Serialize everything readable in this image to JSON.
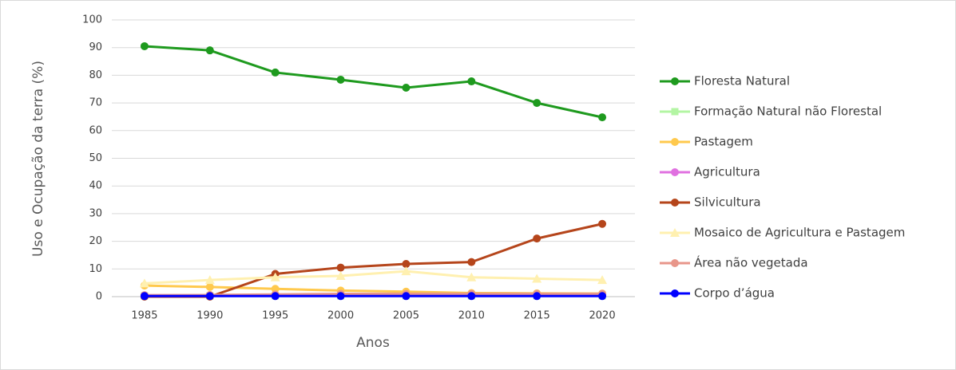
{
  "chart_data": {
    "type": "line",
    "y_label": "Uso e Ocupação da terra (%)",
    "x_label": "Anos",
    "categories": [
      "1985",
      "1990",
      "1995",
      "2000",
      "2005",
      "2010",
      "2015",
      "2020"
    ],
    "ylim": [
      0,
      100
    ],
    "yticks": [
      0,
      10,
      20,
      30,
      40,
      50,
      60,
      70,
      80,
      90,
      100
    ],
    "grid": true,
    "legend": "right",
    "series": [
      {
        "name": "Floresta Natural",
        "color": "#1e9a1e",
        "marker": "circle",
        "values": [
          90.5,
          89,
          81,
          78.4,
          75.5,
          77.8,
          70,
          64.8
        ]
      },
      {
        "name": "Formação Natural não Florestal",
        "color": "#b3f5a3",
        "marker": "square",
        "values": [
          0.3,
          0.3,
          0.3,
          0.3,
          0.3,
          0.3,
          0.3,
          0.3
        ]
      },
      {
        "name": "Pastagem",
        "color": "#ffc94d",
        "marker": "circle",
        "values": [
          4,
          3.5,
          2.8,
          2.2,
          1.8,
          1.3,
          1.2,
          1.1
        ]
      },
      {
        "name": "Agricultura",
        "color": "#e070e0",
        "marker": "circle",
        "values": [
          0.5,
          0.5,
          0.5,
          0.5,
          0.5,
          0.5,
          0.5,
          0.5
        ]
      },
      {
        "name": "Silvicultura",
        "color": "#b5451b",
        "marker": "circle",
        "values": [
          0,
          0,
          8.2,
          10.5,
          11.8,
          12.5,
          21,
          26.3
        ]
      },
      {
        "name": "Mosaico de Agricultura e Pastagem",
        "color": "#fff0b0",
        "marker": "triangle",
        "values": [
          4.8,
          6,
          7,
          7.5,
          9.2,
          7,
          6.5,
          6
        ]
      },
      {
        "name": "Área não vegetada",
        "color": "#e8968a",
        "marker": "circle",
        "values": [
          0.5,
          0.6,
          0.8,
          1,
          1,
          1,
          1,
          1
        ]
      },
      {
        "name": "Corpo d’água",
        "color": "#0000ff",
        "marker": "circle",
        "values": [
          0.2,
          0.2,
          0.2,
          0.2,
          0.2,
          0.2,
          0.2,
          0.2
        ]
      }
    ]
  }
}
